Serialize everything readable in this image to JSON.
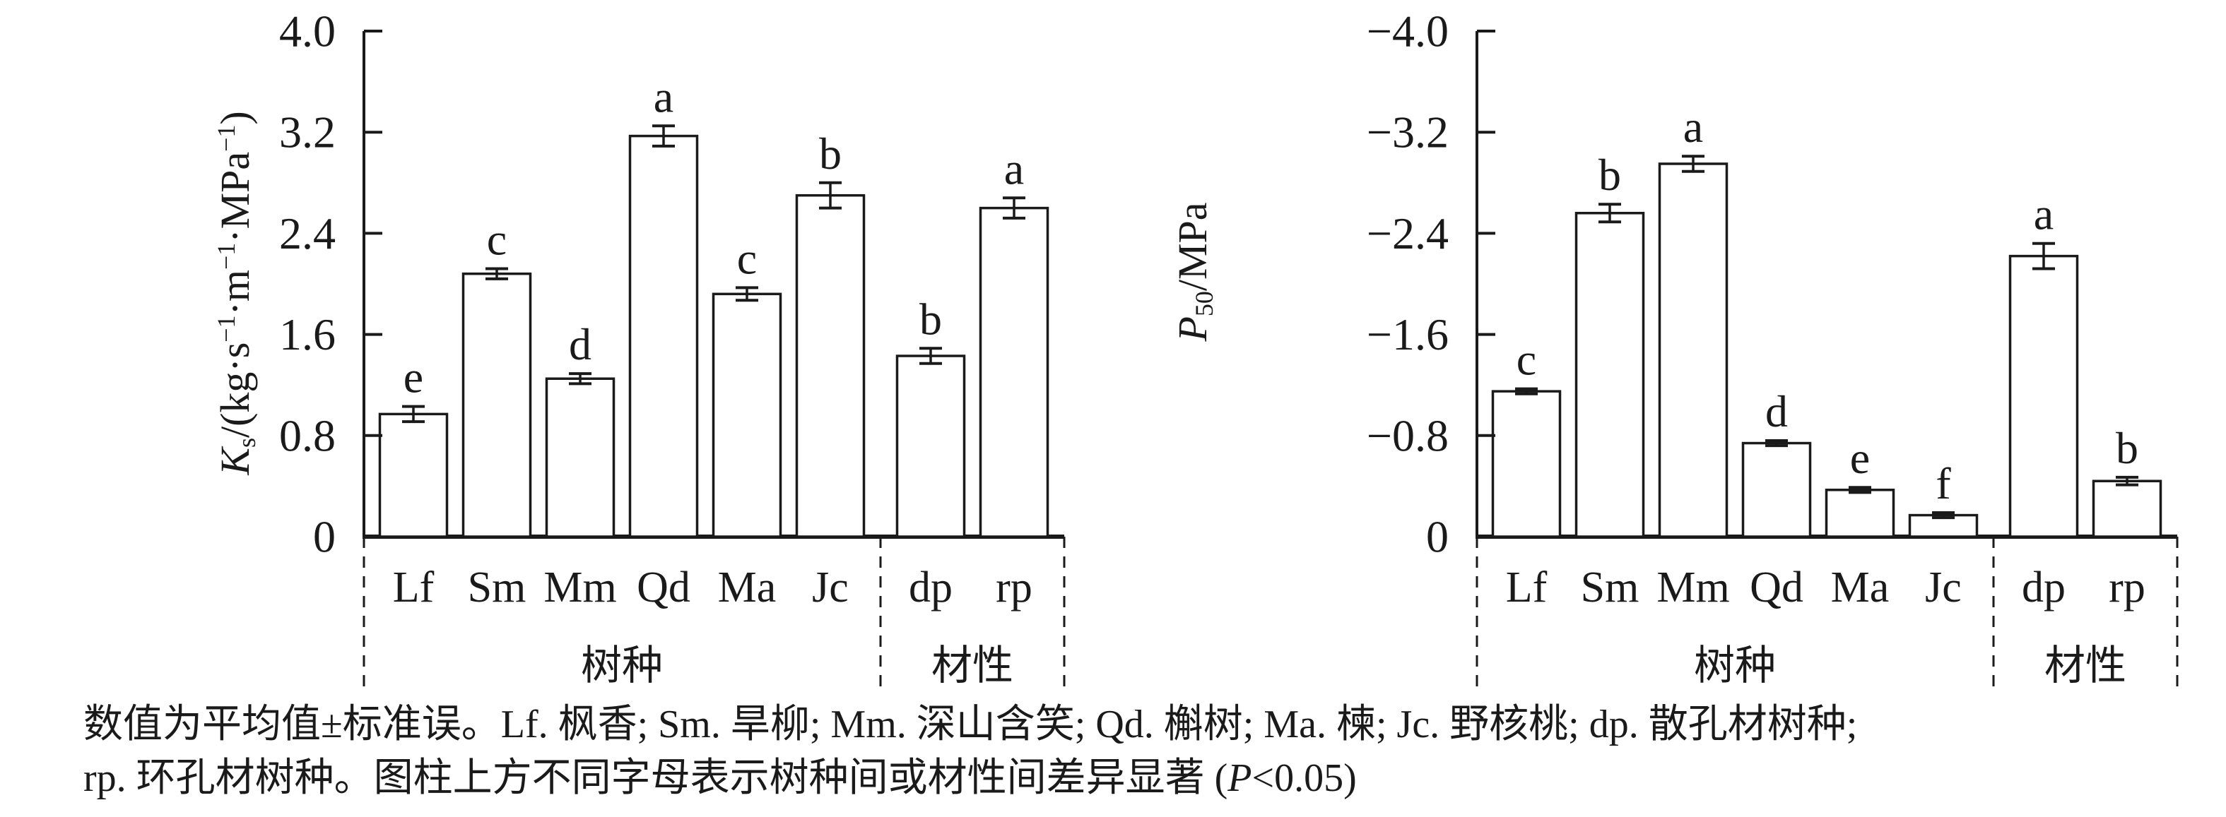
{
  "chart_data": [
    {
      "type": "bar",
      "title": "",
      "xlabel": "",
      "ylabel": "Ks/(kg·s−1·m−1·MPa−1)",
      "ylabel_parts": {
        "sym": "K",
        "sub": "s",
        "r1": "/(kg·s",
        "s1": "−1",
        "r2": "·m",
        "s2": "−1",
        "r3": "·MPa",
        "s3": "−1",
        "r4": ")"
      },
      "categories": [
        "Lf",
        "Sm",
        "Mm",
        "Qd",
        "Ma",
        "Jc",
        "dp",
        "rp"
      ],
      "values": [
        0.97,
        2.08,
        1.25,
        3.17,
        1.92,
        2.7,
        1.43,
        2.6
      ],
      "errors": [
        0.06,
        0.04,
        0.04,
        0.08,
        0.05,
        0.1,
        0.06,
        0.08
      ],
      "sig_letters": [
        "e",
        "c",
        "d",
        "a",
        "c",
        "b",
        "b",
        "a"
      ],
      "yticks": [
        {
          "label": "4.0",
          "value": 4.0
        },
        {
          "label": "3.2",
          "value": 3.2
        },
        {
          "label": "2.4",
          "value": 2.4
        },
        {
          "label": "1.6",
          "value": 1.6
        },
        {
          "label": "0.8",
          "value": 0.8
        },
        {
          "label": "0",
          "value": 0
        }
      ],
      "ylim": [
        0,
        4.0
      ],
      "grid": false,
      "legend": null,
      "groups": [
        {
          "label": "树种",
          "from": 0,
          "to": 5
        },
        {
          "label": "材性",
          "from": 6,
          "to": 7
        }
      ]
    },
    {
      "type": "bar",
      "title": "",
      "xlabel": "",
      "ylabel": "P50/MPa",
      "ylabel_parts": {
        "sym": "P",
        "sub": "50",
        "r1": "/MPa",
        "s1": "",
        "r2": "",
        "s2": "",
        "r3": "",
        "s3": "",
        "r4": ""
      },
      "categories": [
        "Lf",
        "Sm",
        "Mm",
        "Qd",
        "Ma",
        "Jc",
        "dp",
        "rp"
      ],
      "values": [
        -1.15,
        -2.56,
        -2.95,
        -0.74,
        -0.37,
        -0.17,
        -2.22,
        -0.44
      ],
      "errors": [
        0.02,
        0.07,
        0.06,
        0.02,
        0.02,
        0.02,
        0.1,
        0.03
      ],
      "sig_letters": [
        "c",
        "b",
        "a",
        "d",
        "e",
        "f",
        "a",
        "b"
      ],
      "yticks": [
        {
          "label": "−4.0",
          "value": 4.0
        },
        {
          "label": "−3.2",
          "value": 3.2
        },
        {
          "label": "−2.4",
          "value": 2.4
        },
        {
          "label": "−1.6",
          "value": 1.6
        },
        {
          "label": "−0.8",
          "value": 0.8
        },
        {
          "label": "0",
          "value": 0
        }
      ],
      "ylim": [
        0,
        -4.0
      ],
      "grid": false,
      "legend": null,
      "groups": [
        {
          "label": "树种",
          "from": 0,
          "to": 5
        },
        {
          "label": "材性",
          "from": 6,
          "to": 7
        }
      ]
    }
  ],
  "caption": {
    "line1": "数值为平均值±标准误。Lf. 枫香; Sm. 旱柳; Mm. 深山含笑; Qd. 槲树; Ma. 楝; Jc. 野核桃; dp. 散孔材树种;",
    "line2_pre": "rp. 环孔材树种。图柱上方不同字母表示树种间或材性间差异显著 (",
    "line2_italic": "P",
    "line2_post": "<0.05)"
  },
  "style": {
    "ink_color": "#1a1a1a",
    "bar_fill": "#ffffff",
    "background": "#ffffff"
  }
}
